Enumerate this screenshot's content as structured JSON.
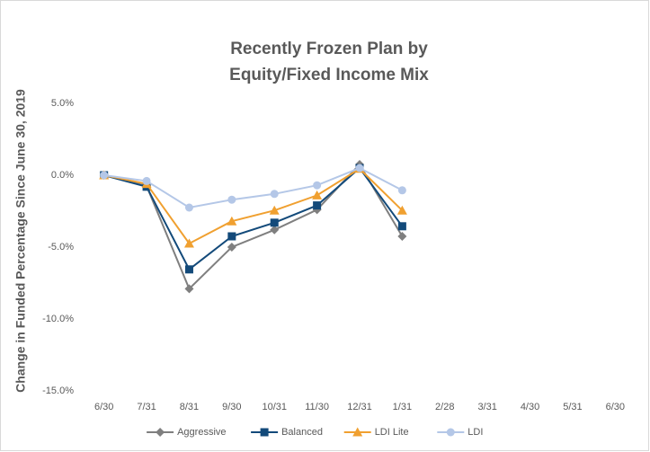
{
  "chart_data": {
    "type": "line",
    "title_lines": [
      "Recently Frozen Plan by",
      "Equity/Fixed Income Mix"
    ],
    "y_label": "Change in Funded Percentage Since June 30, 2019",
    "categories": [
      "6/30",
      "7/31",
      "8/31",
      "9/30",
      "10/31",
      "11/30",
      "12/31",
      "1/31",
      "2/28",
      "3/31",
      "4/30",
      "5/31",
      "6/30"
    ],
    "series": [
      {
        "name": "Aggressive",
        "color": "#7f7f7f",
        "marker": "diamond",
        "values": [
          0,
          -0.75,
          -7.9,
          -5.0,
          -3.8,
          -2.4,
          0.75,
          -4.25,
          null,
          null,
          null,
          null,
          null
        ]
      },
      {
        "name": "Balanced",
        "color": "#134a7a",
        "marker": "square",
        "values": [
          0,
          -0.8,
          -6.55,
          -4.25,
          -3.3,
          -2.1,
          0.5,
          -3.55,
          null,
          null,
          null,
          null,
          null
        ]
      },
      {
        "name": "LDI Lite",
        "color": "#f0a030",
        "marker": "triangle",
        "values": [
          0,
          -0.6,
          -4.75,
          -3.2,
          -2.45,
          -1.4,
          0.45,
          -2.45,
          null,
          null,
          null,
          null,
          null
        ]
      },
      {
        "name": "LDI",
        "color": "#b4c7e7",
        "marker": "circle",
        "values": [
          0,
          -0.4,
          -2.25,
          -1.7,
          -1.3,
          -0.7,
          0.5,
          -1.05,
          null,
          null,
          null,
          null,
          null
        ]
      }
    ],
    "ylim": [
      -15,
      5
    ],
    "yticks": [
      {
        "value": 5,
        "label": "5.0%"
      },
      {
        "value": 0,
        "label": "0.0%"
      },
      {
        "value": -5,
        "label": "-5.0%"
      },
      {
        "value": -10,
        "label": "-10.0%"
      },
      {
        "value": -15,
        "label": "-15.0%"
      }
    ],
    "grid": false,
    "legend": "bottom"
  }
}
